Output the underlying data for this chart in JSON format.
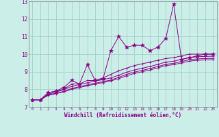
{
  "xlabel": "Windchill (Refroidissement éolien,°C)",
  "bg_color": "#cceee8",
  "line_color": "#880088",
  "grid_color": "#99ccbb",
  "x_values": [
    0,
    1,
    2,
    3,
    4,
    5,
    6,
    7,
    8,
    9,
    10,
    11,
    12,
    13,
    14,
    15,
    16,
    17,
    18,
    19,
    20,
    21,
    22,
    23
  ],
  "lines": [
    [
      7.4,
      7.4,
      7.8,
      7.9,
      8.1,
      8.5,
      8.3,
      9.4,
      8.5,
      8.6,
      10.2,
      11.0,
      10.4,
      10.5,
      10.5,
      10.2,
      10.4,
      10.9,
      12.85,
      9.7,
      9.8,
      9.9,
      10.0,
      10.0
    ],
    [
      7.4,
      7.4,
      7.8,
      7.9,
      8.0,
      8.3,
      8.3,
      8.5,
      8.5,
      8.65,
      8.85,
      9.05,
      9.2,
      9.35,
      9.45,
      9.55,
      9.65,
      9.75,
      9.8,
      9.9,
      10.0,
      10.0,
      10.0,
      10.0
    ],
    [
      7.4,
      7.4,
      7.72,
      7.85,
      7.97,
      8.17,
      8.27,
      8.37,
      8.47,
      8.55,
      8.65,
      8.8,
      8.97,
      9.1,
      9.2,
      9.3,
      9.42,
      9.55,
      9.6,
      9.7,
      9.8,
      9.85,
      9.87,
      9.88
    ],
    [
      7.4,
      7.4,
      7.68,
      7.78,
      7.88,
      8.05,
      8.15,
      8.25,
      8.35,
      8.43,
      8.53,
      8.68,
      8.85,
      8.98,
      9.08,
      9.18,
      9.3,
      9.42,
      9.48,
      9.58,
      9.68,
      9.73,
      9.75,
      9.76
    ],
    [
      7.4,
      7.4,
      7.65,
      7.75,
      7.85,
      8.0,
      8.1,
      8.2,
      8.3,
      8.38,
      8.48,
      8.6,
      8.77,
      8.9,
      9.0,
      9.1,
      9.22,
      9.35,
      9.4,
      9.5,
      9.6,
      9.65,
      9.67,
      9.68
    ]
  ],
  "ylim": [
    7.0,
    13.0
  ],
  "yticks": [
    7,
    8,
    9,
    10,
    11,
    12,
    13
  ],
  "xlim": [
    -0.5,
    23.5
  ],
  "ytick_fontsize": 5.5,
  "xtick_fontsize": 4.2,
  "xlabel_fontsize": 5.5
}
